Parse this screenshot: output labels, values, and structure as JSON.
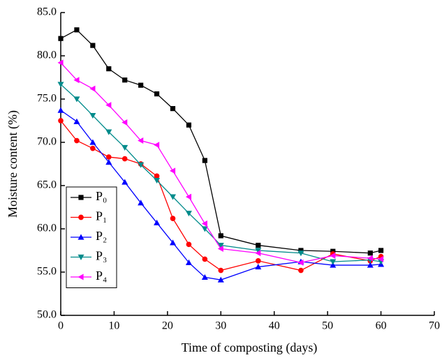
{
  "chart_data": {
    "type": "line",
    "xlabel": "Time of composting (days)",
    "ylabel": "Moisture content (%)",
    "x": [
      0,
      3,
      6,
      9,
      12,
      15,
      18,
      21,
      24,
      27,
      30,
      37,
      45,
      51,
      58,
      60
    ],
    "series": [
      {
        "name": "P₀",
        "color": "#000000",
        "marker": "square",
        "values": [
          82.0,
          83.0,
          81.2,
          78.5,
          77.2,
          76.6,
          75.6,
          73.9,
          72.0,
          67.9,
          59.2,
          58.1,
          57.5,
          57.4,
          57.2,
          57.5
        ]
      },
      {
        "name": "P₁",
        "color": "#ff0000",
        "marker": "circle",
        "values": [
          72.5,
          70.2,
          69.3,
          68.3,
          68.1,
          67.5,
          66.1,
          61.2,
          58.2,
          56.5,
          55.2,
          56.3,
          55.2,
          57.1,
          56.3,
          56.8
        ]
      },
      {
        "name": "P₂",
        "color": "#0000ff",
        "marker": "triangle-up",
        "values": [
          73.7,
          72.4,
          70.0,
          67.7,
          65.4,
          63.0,
          60.7,
          58.4,
          56.1,
          54.4,
          54.1,
          55.6,
          56.2,
          55.8,
          55.8,
          55.9
        ]
      },
      {
        "name": "P₃",
        "color": "#008b8b",
        "marker": "triangle-down",
        "values": [
          76.7,
          75.0,
          73.1,
          71.2,
          69.4,
          67.4,
          65.6,
          63.7,
          61.8,
          60.0,
          58.1,
          57.5,
          57.2,
          56.2,
          56.4,
          56.2
        ]
      },
      {
        "name": "P₄",
        "color": "#ff00ff",
        "marker": "triangle-left",
        "values": [
          79.2,
          77.2,
          76.2,
          74.3,
          72.3,
          70.2,
          69.7,
          66.7,
          63.7,
          60.6,
          57.7,
          57.2,
          56.1,
          56.9,
          56.6,
          56.5
        ]
      }
    ],
    "xlim": [
      0,
      70
    ],
    "xticks": [
      0,
      10,
      20,
      30,
      40,
      50,
      60,
      70
    ],
    "ylim": [
      50,
      85
    ],
    "yticks": [
      {
        "value": 50,
        "label": "50.0"
      },
      {
        "value": 55,
        "label": "55.0"
      },
      {
        "value": 60,
        "label": "60.0"
      },
      {
        "value": 65,
        "label": "65.0"
      },
      {
        "value": 70,
        "label": "70.0"
      },
      {
        "value": 75,
        "label": "75.0"
      },
      {
        "value": 80,
        "label": "80.0"
      },
      {
        "value": 85,
        "label": "85.0"
      }
    ],
    "legend": "lower-left",
    "grid": false
  }
}
